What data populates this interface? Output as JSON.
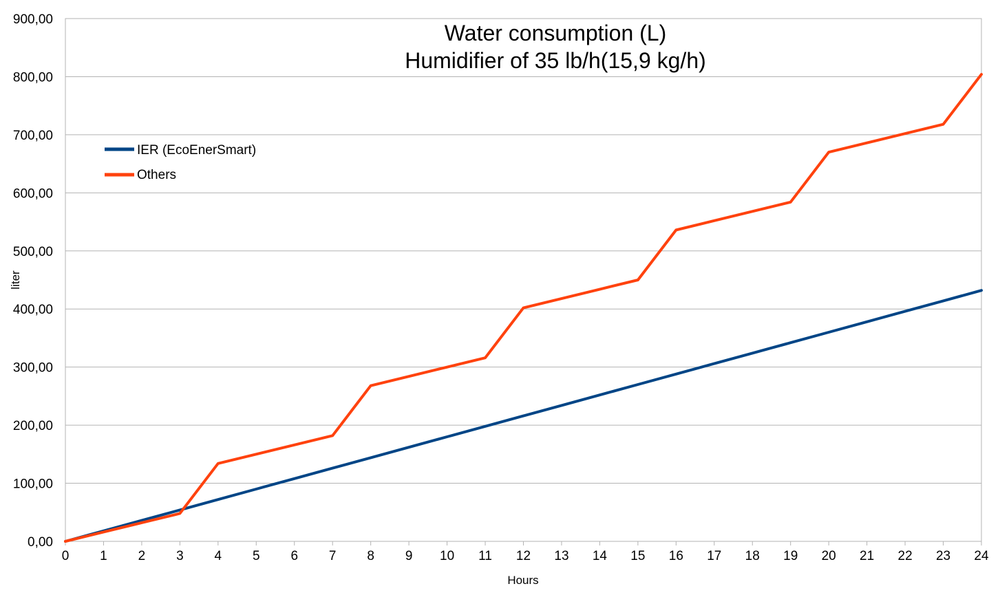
{
  "chart_data": {
    "type": "line",
    "title": [
      "Water consumption (L)",
      "Humidifier of 35 lb/h(15,9 kg/h)"
    ],
    "xlabel": "Hours",
    "ylabel": "liter",
    "x": [
      0,
      1,
      2,
      3,
      4,
      5,
      6,
      7,
      8,
      9,
      10,
      11,
      12,
      13,
      14,
      15,
      16,
      17,
      18,
      19,
      20,
      21,
      22,
      23,
      24
    ],
    "xlim": [
      0,
      24
    ],
    "ylim": [
      0,
      900
    ],
    "yticks": [
      0,
      100,
      200,
      300,
      400,
      500,
      600,
      700,
      800,
      900
    ],
    "ytick_labels": [
      "0,00",
      "100,00",
      "200,00",
      "300,00",
      "400,00",
      "500,00",
      "600,00",
      "700,00",
      "800,00",
      "900,00"
    ],
    "grid": "horizontal",
    "legend_position": "upper-left",
    "series": [
      {
        "name": "IER (EcoEnerSmart)",
        "color": "#004586",
        "values": [
          0,
          18,
          36,
          54,
          72,
          90,
          108,
          126,
          144,
          162,
          180,
          198,
          216,
          234,
          252,
          270,
          288,
          306,
          324,
          342,
          360,
          378,
          396,
          414,
          432
        ]
      },
      {
        "name": "Others",
        "color": "#ff420e",
        "values": [
          0,
          16,
          32,
          48,
          134,
          150,
          166,
          182,
          268,
          284,
          300,
          316,
          402,
          418,
          434,
          450,
          536,
          552,
          568,
          584,
          670,
          686,
          702,
          718,
          804
        ]
      }
    ]
  }
}
